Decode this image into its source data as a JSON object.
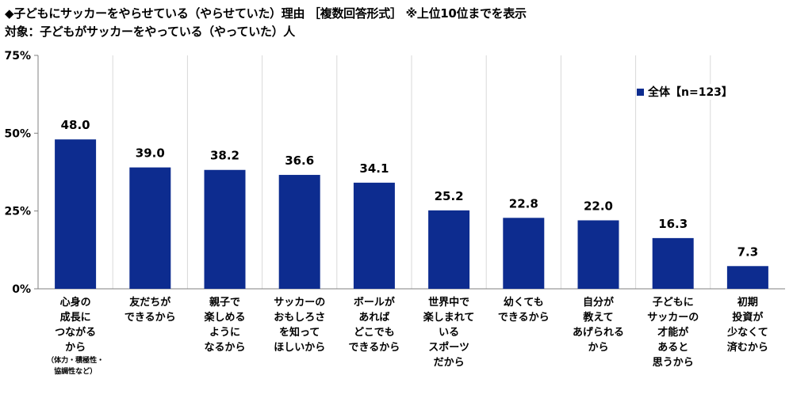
{
  "title_line1": "◆子どもにサッカーをやらせている（やらせていた）理由 ［複数回答形式］ ※上位10位までを表示",
  "title_line2": "対象：子どもがサッカーをやっている（やっていた）人",
  "colors": {
    "bar": "#0D2C8F",
    "grid": "#D9D9D9",
    "axis": "#808080"
  },
  "chart_data": {
    "type": "bar",
    "title": "",
    "xlabel": "",
    "ylabel": "",
    "ylim": [
      0,
      75
    ],
    "yticks": [
      0,
      25,
      50,
      75
    ],
    "ytick_labels": [
      "0%",
      "25%",
      "50%",
      "75%"
    ],
    "grid": "vertical-separators",
    "legend_position": "top-right",
    "categories": [
      {
        "lines": [
          "心身の",
          "成長に",
          "つながる",
          "から"
        ],
        "note": [
          "（体力・積極性・",
          "協調性など）"
        ]
      },
      {
        "lines": [
          "友だちが",
          "できるから"
        ]
      },
      {
        "lines": [
          "親子で",
          "楽しめる",
          "ように",
          "なるから"
        ]
      },
      {
        "lines": [
          "サッカーの",
          "おもしろさ",
          "を知って",
          "ほしいから"
        ]
      },
      {
        "lines": [
          "ボールが",
          "あれば",
          "どこでも",
          "できるから"
        ]
      },
      {
        "lines": [
          "世界中で",
          "楽しまれて",
          "いる",
          "スポーツ",
          "だから"
        ]
      },
      {
        "lines": [
          "幼くても",
          "できるから"
        ]
      },
      {
        "lines": [
          "自分が",
          "教えて",
          "あげられる",
          "から"
        ]
      },
      {
        "lines": [
          "子どもに",
          "サッカーの",
          "才能が",
          "あると",
          "思うから"
        ]
      },
      {
        "lines": [
          "初期",
          "投資が",
          "少なくて",
          "済むから"
        ]
      }
    ],
    "series": [
      {
        "name": "全体【n=123】",
        "values": [
          48.0,
          39.0,
          38.2,
          36.6,
          34.1,
          25.2,
          22.8,
          22.0,
          16.3,
          7.3
        ],
        "labels": [
          "48.0",
          "39.0",
          "38.2",
          "36.6",
          "34.1",
          "25.2",
          "22.8",
          "22.0",
          "16.3",
          "7.3"
        ]
      }
    ]
  }
}
